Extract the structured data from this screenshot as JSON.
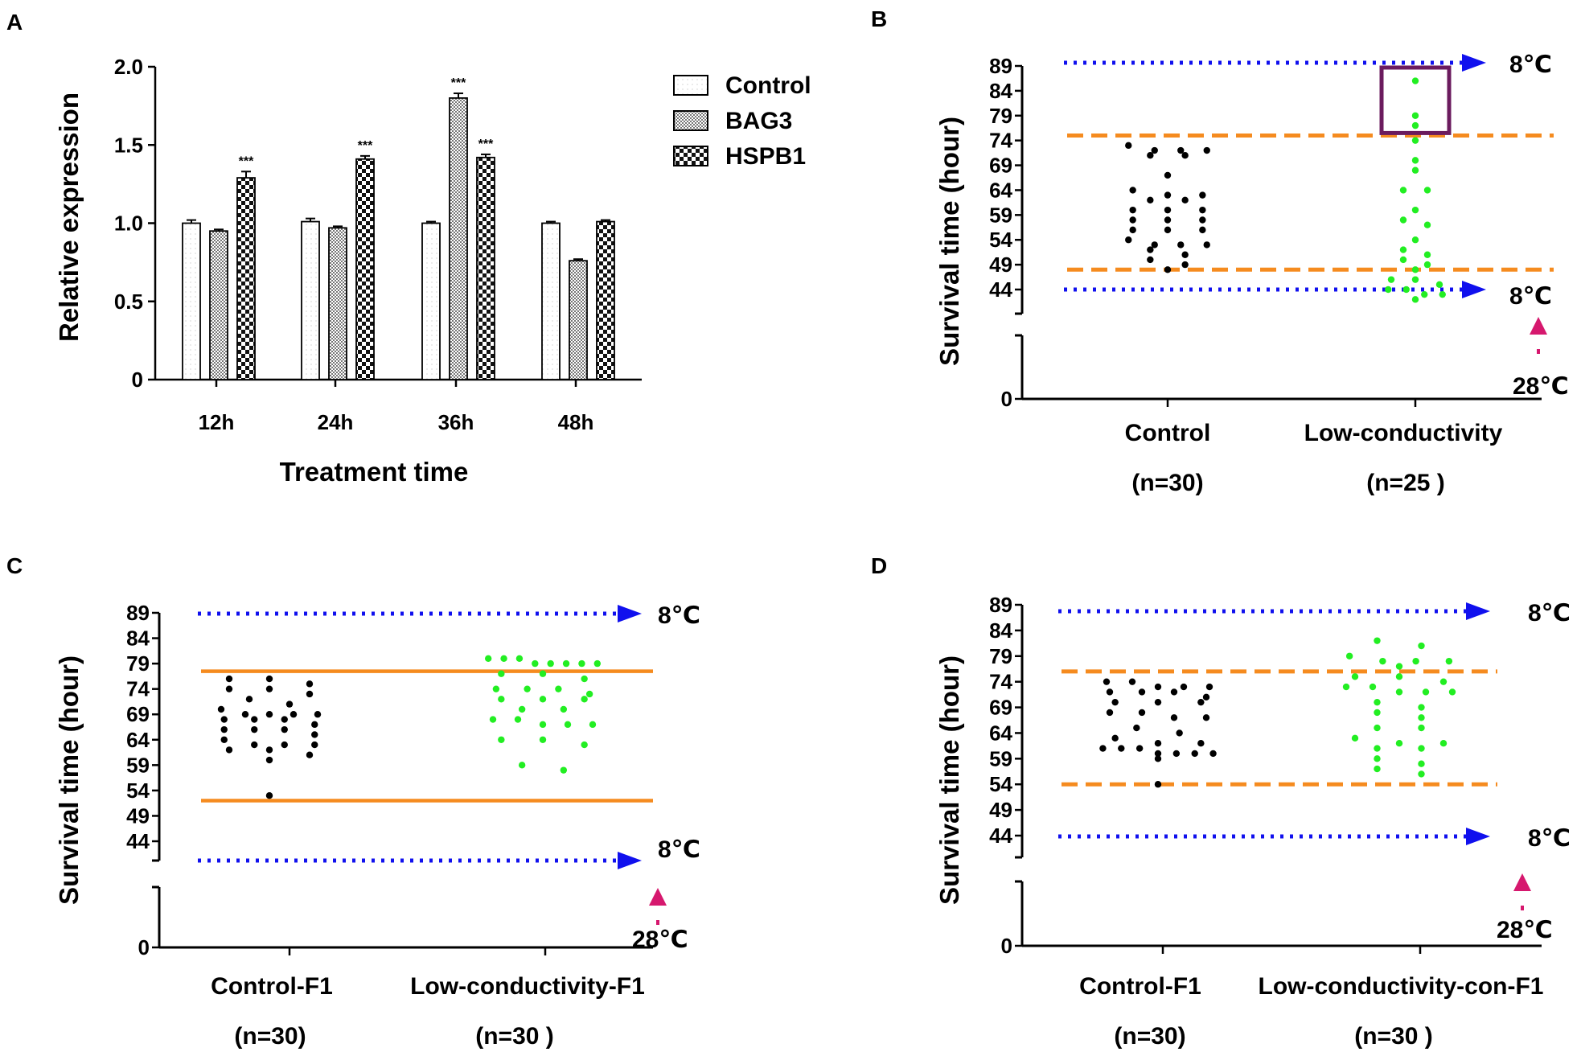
{
  "panels": {
    "A": {
      "letter": "A",
      "chart_data": {
        "type": "bar",
        "title": "",
        "xlabel": "Treatment time",
        "ylabel": "Relative expression",
        "categories": [
          "12h",
          "24h",
          "36h",
          "48h"
        ],
        "ylim": [
          0,
          2.0
        ],
        "yticks": [
          "0",
          "0.5",
          "1.0",
          "1.5",
          "2.0"
        ],
        "series": [
          {
            "name": "Control",
            "values": [
              1.0,
              1.01,
              1.0,
              1.0
            ],
            "errors": [
              0.02,
              0.02,
              0.01,
              0.01
            ]
          },
          {
            "name": "BAG3",
            "values": [
              0.95,
              0.97,
              1.8,
              0.76
            ],
            "errors": [
              0.01,
              0.01,
              0.03,
              0.01
            ]
          },
          {
            "name": "HSPB1",
            "values": [
              1.29,
              1.41,
              1.42,
              1.01
            ],
            "errors": [
              0.04,
              0.02,
              0.02,
              0.01
            ]
          }
        ],
        "significance": [
          {
            "category": "12h",
            "series": "HSPB1",
            "label": "***"
          },
          {
            "category": "24h",
            "series": "HSPB1",
            "label": "***"
          },
          {
            "category": "36h",
            "series": "BAG3",
            "label": "***"
          },
          {
            "category": "36h",
            "series": "HSPB1",
            "label": "***"
          }
        ],
        "legend_position": "top-right"
      }
    },
    "B": {
      "letter": "B",
      "chart_data": {
        "type": "scatter",
        "ylabel": "Survival time (hour)",
        "yticks": [
          "0",
          "44",
          "49",
          "54",
          "59",
          "64",
          "69",
          "74",
          "79",
          "84",
          "89"
        ],
        "ylim_upper": [
          44,
          89
        ],
        "axis_break": true,
        "groups": [
          {
            "label": "Control",
            "n_label": "(n=30)",
            "color": "#000000",
            "points": [
              73,
              72,
              71,
              71,
              72,
              72,
              67,
              62,
              63,
              63,
              64,
              62,
              60,
              60,
              58,
              58,
              58,
              60,
              56,
              56,
              56,
              53,
              53,
              54,
              53,
              51,
              50,
              49,
              48,
              52
            ]
          },
          {
            "label": "Low-conductivity",
            "n_label": "(n=25 )",
            "color": "#22ee22",
            "points": [
              86,
              79,
              77,
              74,
              70,
              68,
              64,
              64,
              60,
              58,
              57,
              54,
              52,
              51,
              50,
              49,
              48,
              46,
              46,
              45,
              44,
              44,
              43,
              43,
              42
            ]
          }
        ],
        "reference_lines": {
          "dashed_orange": [
            75,
            48
          ],
          "line_style": "dashed"
        },
        "temperature_arrows": {
          "top": "8℃",
          "bottom": "8℃",
          "top_value": 89,
          "bottom_value": 44,
          "start": "28℃"
        },
        "highlight_box": {
          "group": "Low-conductivity",
          "y_range": [
            75.5,
            89
          ]
        }
      }
    },
    "C": {
      "letter": "C",
      "chart_data": {
        "type": "scatter",
        "ylabel": "Survival time (hour)",
        "yticks": [
          "0",
          "44",
          "49",
          "54",
          "59",
          "64",
          "69",
          "74",
          "79",
          "84",
          "89"
        ],
        "ylim_upper": [
          44,
          89
        ],
        "axis_break": true,
        "groups": [
          {
            "label": "Control-F1",
            "n_label": "(n=30)",
            "color": "#000000",
            "points": [
              76,
              76,
              75,
              74,
              74,
              73,
              72,
              71,
              70,
              69,
              69,
              69,
              69,
              68,
              68,
              68,
              67,
              66,
              66,
              66,
              65,
              64,
              63,
              63,
              63,
              62,
              62,
              61,
              60,
              53
            ]
          },
          {
            "label": "Low-conductivity-F1",
            "n_label": "(n=30 )",
            "color": "#22ee22",
            "points": [
              80,
              80,
              80,
              79,
              79,
              79,
              79,
              79,
              77,
              77,
              76,
              74,
              74,
              74,
              73,
              72,
              72,
              72,
              70,
              70,
              68,
              68,
              67,
              67,
              67,
              64,
              64,
              63,
              59,
              58
            ]
          }
        ],
        "reference_lines": {
          "solid_orange": [
            77.5,
            52
          ],
          "line_style": "solid"
        },
        "temperature_arrows": {
          "top": "8℃",
          "bottom": "8℃",
          "top_value": 89,
          "bottom_value": 40,
          "start": "28℃"
        }
      }
    },
    "D": {
      "letter": "D",
      "chart_data": {
        "type": "scatter",
        "ylabel": "Survival time (hour)",
        "yticks": [
          "0",
          "44",
          "49",
          "54",
          "59",
          "64",
          "69",
          "74",
          "79",
          "84",
          "89"
        ],
        "ylim_upper": [
          44,
          89
        ],
        "axis_break": true,
        "groups": [
          {
            "label": "Control-F1",
            "n_label": "(n=30)",
            "color": "#000000",
            "points": [
              74,
              74,
              73,
              73,
              73,
              72,
              72,
              72,
              71,
              70,
              70,
              70,
              68,
              68,
              67,
              67,
              65,
              64,
              63,
              62,
              62,
              61,
              61,
              61,
              60,
              60,
              60,
              60,
              59,
              54
            ]
          },
          {
            "label": "Low-conductivity-con-F1",
            "n_label": "(n=30 )",
            "color": "#22ee22",
            "points": [
              82,
              81,
              79,
              78,
              78,
              78,
              77,
              75,
              75,
              74,
              73,
              73,
              72,
              72,
              72,
              70,
              69,
              68,
              67,
              65,
              65,
              63,
              62,
              62,
              61,
              61,
              59,
              58,
              57,
              56
            ]
          }
        ],
        "reference_lines": {
          "dashed_orange": [
            76,
            54
          ],
          "line_style": "dashed"
        },
        "temperature_arrows": {
          "top": "8℃",
          "bottom": "8℃",
          "top_value": 89,
          "bottom_value": 44,
          "start": "28℃"
        }
      }
    }
  },
  "colors": {
    "orange": "#f58b1f",
    "blue": "#1010ee",
    "magenta": "#d6186e",
    "purple": "#6b1b5e",
    "green": "#22ee22"
  }
}
